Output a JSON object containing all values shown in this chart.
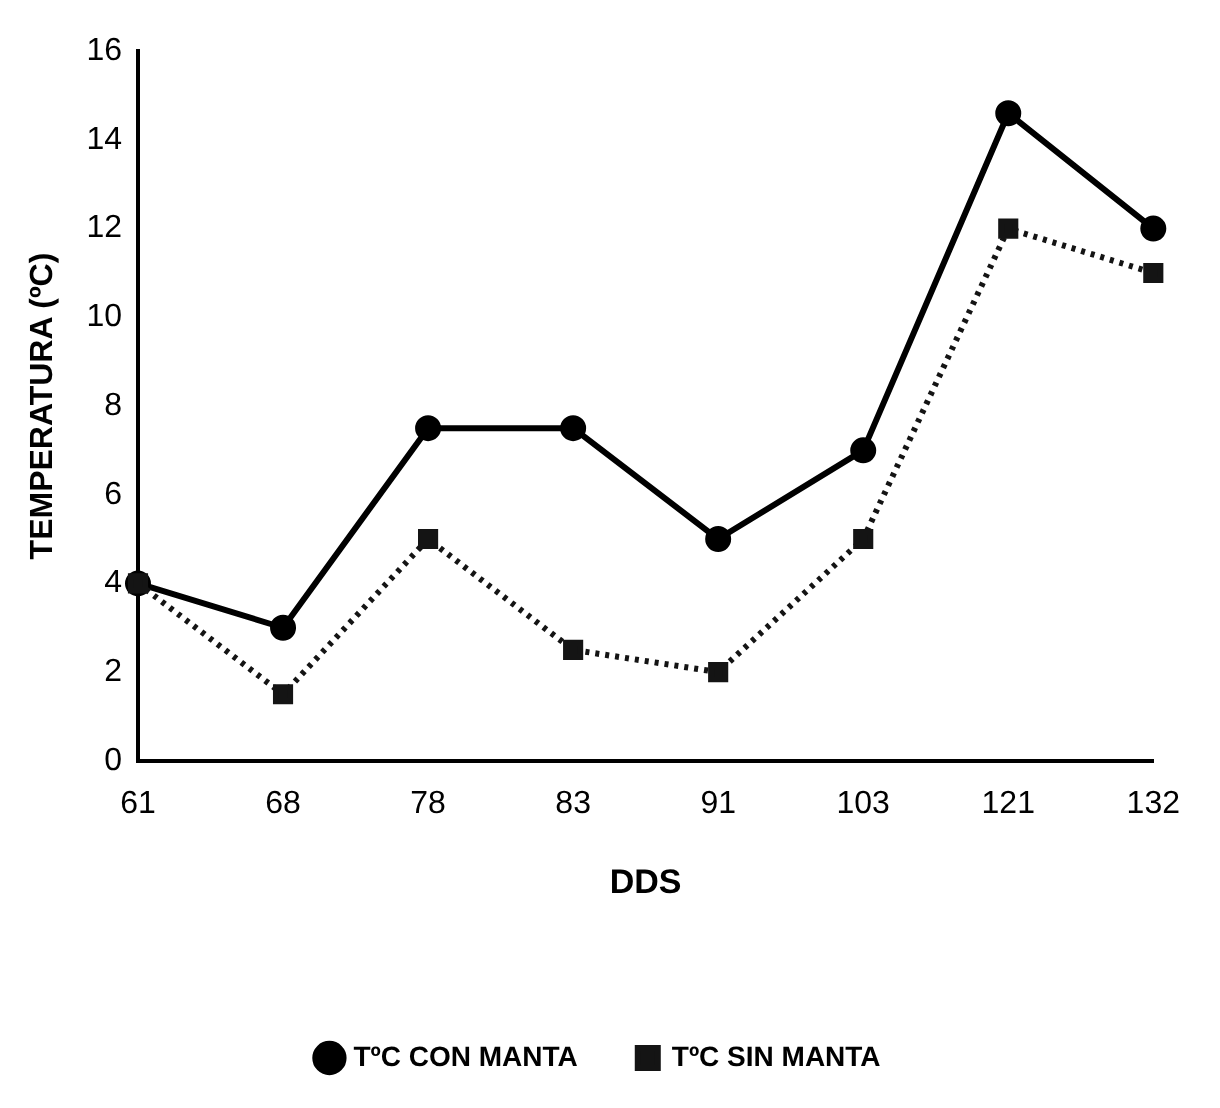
{
  "chart_data": {
    "type": "line",
    "xlabel": "DDS",
    "ylabel": "TEMPERATURA (ºC)",
    "categories": [
      "61",
      "68",
      "78",
      "83",
      "91",
      "103",
      "121",
      "132"
    ],
    "series": [
      {
        "name": "TºC CON MANTA",
        "color": "#000000",
        "line_style": "solid",
        "marker": "circle",
        "values": [
          4,
          3,
          7.5,
          7.5,
          5,
          7,
          14.6,
          12
        ]
      },
      {
        "name": "TºC SIN MANTA",
        "color": "#141414",
        "line_style": "dotted",
        "marker": "square",
        "values": [
          4,
          1.5,
          5,
          2.5,
          2,
          5,
          12,
          11
        ]
      }
    ],
    "ylim": [
      0,
      16
    ],
    "yticks": [
      0,
      2,
      4,
      6,
      8,
      10,
      12,
      14,
      16
    ],
    "grid": false,
    "legend": "bottom"
  }
}
